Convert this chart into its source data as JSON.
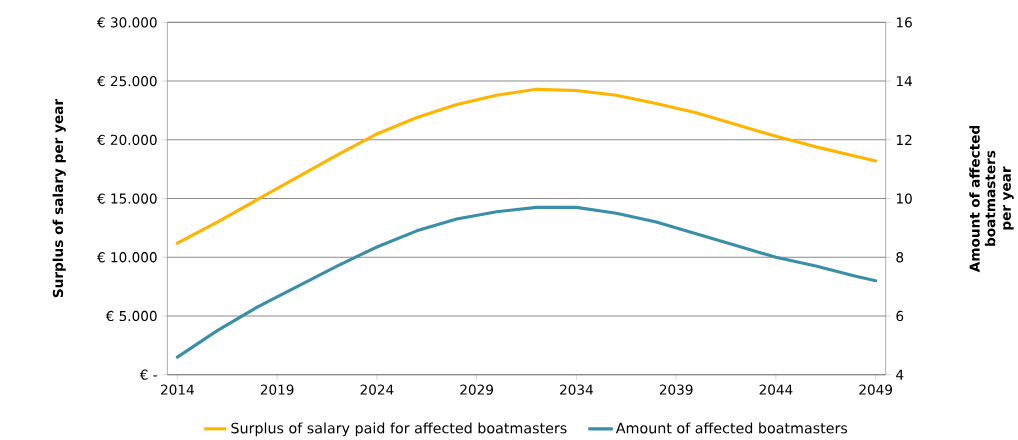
{
  "chart_data": {
    "type": "line",
    "ylabel": "Surplus of salary per year",
    "y2label": "Amount of affected boatmasters per year",
    "x": [
      2014,
      2016,
      2018,
      2020,
      2022,
      2024,
      2026,
      2028,
      2030,
      2032,
      2034,
      2036,
      2038,
      2040,
      2042,
      2044,
      2046,
      2048,
      2049
    ],
    "series": [
      {
        "name": "Surplus of salary paid for affected boatmasters",
        "color": "#ffb400",
        "values": [
          11200,
          13000,
          14900,
          16800,
          18700,
          20500,
          21900,
          23000,
          23800,
          24300,
          24200,
          23800,
          23100,
          22300,
          21300,
          20300,
          19400,
          18600,
          18200
        ]
      },
      {
        "name": "Amount of affected boatmasters",
        "color": "#3a8fa8",
        "axis": "y2",
        "values": [
          4.6,
          5.5,
          6.3,
          7.0,
          7.7,
          8.35,
          8.9,
          9.3,
          9.55,
          9.7,
          9.7,
          9.5,
          9.2,
          8.8,
          8.4,
          8.0,
          7.7,
          7.35,
          7.2
        ]
      }
    ],
    "xlim": [
      2013.5,
      2049.5
    ],
    "xticks": [
      2014,
      2019,
      2024,
      2029,
      2034,
      2039,
      2044,
      2049
    ],
    "ylim": [
      0,
      30000
    ],
    "yticks": [
      {
        "value": 0,
        "label": "€ -"
      },
      {
        "value": 5000,
        "label": "€ 5.000"
      },
      {
        "value": 10000,
        "label": "€ 10.000"
      },
      {
        "value": 15000,
        "label": "€ 15.000"
      },
      {
        "value": 20000,
        "label": "€ 20.000"
      },
      {
        "value": 25000,
        "label": "€ 25.000"
      },
      {
        "value": 30000,
        "label": "€ 30.000"
      }
    ],
    "y2lim": [
      4,
      16
    ],
    "y2ticks": [
      4,
      6,
      8,
      10,
      12,
      14,
      16
    ],
    "grid": "y",
    "legend": "bottom",
    "line_style": "solid"
  }
}
